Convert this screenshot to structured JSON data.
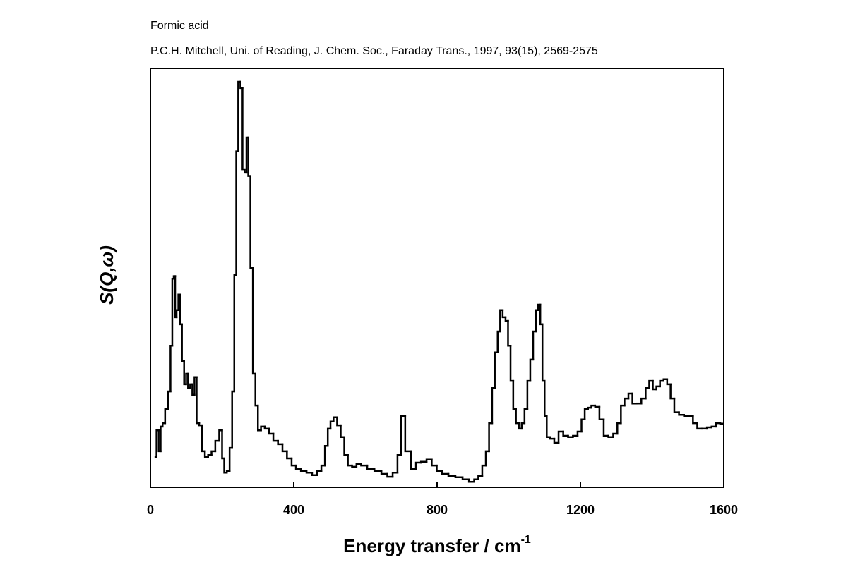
{
  "chart_data": {
    "type": "line",
    "drawstyle": "steps-mid",
    "title": "Formic acid",
    "subtitle": "P.C.H. Mitchell, Uni. of Reading, J. Chem. Soc., Faraday Trans., 1997, 93(15), 2569-2575",
    "x_label": "Energy transfer / cm",
    "x_label_superscript": "-1",
    "y_label": "S(Q,ω)",
    "xlim": [
      0,
      1600
    ],
    "xticks": [
      0,
      400,
      800,
      1200,
      1600
    ],
    "ylim": [
      0,
      100
    ],
    "color": "#000000",
    "x": [
      14,
      20,
      26,
      31,
      37,
      45,
      53,
      59,
      63,
      67,
      71,
      75,
      81,
      85,
      91,
      97,
      102,
      108,
      114,
      120,
      126,
      132,
      140,
      148,
      156,
      166,
      175,
      187,
      197,
      203,
      209,
      217,
      225,
      231,
      237,
      242,
      248,
      254,
      260,
      266,
      270,
      276,
      282,
      290,
      296,
      304,
      313,
      325,
      337,
      349,
      363,
      374,
      388,
      400,
      412,
      428,
      443,
      459,
      471,
      483,
      491,
      499,
      506,
      516,
      526,
      536,
      546,
      556,
      569,
      581,
      595,
      615,
      635,
      654,
      668,
      684,
      695,
      703,
      719,
      735,
      747,
      763,
      778,
      792,
      806,
      822,
      841,
      861,
      881,
      897,
      910,
      920,
      932,
      940,
      950,
      957,
      965,
      973,
      979,
      987,
      995,
      1001,
      1009,
      1016,
      1024,
      1032,
      1040,
      1048,
      1056,
      1064,
      1072,
      1079,
      1085,
      1091,
      1097,
      1103,
      1109,
      1121,
      1133,
      1145,
      1159,
      1172,
      1186,
      1198,
      1208,
      1216,
      1226,
      1235,
      1247,
      1259,
      1271,
      1285,
      1298,
      1308,
      1318,
      1328,
      1340,
      1350,
      1363,
      1377,
      1387,
      1397,
      1407,
      1417,
      1427,
      1437,
      1447,
      1456,
      1468,
      1482,
      1496,
      1508,
      1520,
      1532,
      1546,
      1560,
      1572,
      1584,
      1596
    ],
    "values": [
      7.2,
      13.6,
      8.6,
      14.5,
      15.3,
      18.7,
      22.9,
      33.8,
      49.8,
      50.4,
      40.6,
      42.3,
      46.0,
      38.9,
      30.1,
      24.6,
      27.1,
      23.7,
      24.6,
      22.1,
      26.3,
      15.3,
      14.8,
      8.6,
      7.2,
      7.7,
      8.6,
      11.1,
      13.6,
      6.9,
      3.5,
      3.9,
      9.4,
      22.9,
      50.7,
      80.2,
      96.8,
      95.3,
      75.9,
      75.1,
      83.5,
      74.3,
      52.4,
      27.1,
      19.5,
      13.6,
      14.5,
      14.0,
      12.8,
      11.1,
      10.3,
      8.6,
      6.9,
      5.2,
      4.4,
      3.9,
      3.5,
      2.9,
      3.9,
      5.2,
      9.9,
      14.0,
      15.7,
      16.7,
      14.8,
      12.0,
      7.7,
      5.2,
      4.9,
      5.6,
      5.2,
      4.4,
      3.9,
      3.2,
      2.5,
      3.5,
      7.7,
      17.0,
      8.6,
      4.4,
      5.9,
      6.1,
      6.6,
      5.2,
      3.9,
      3.2,
      2.7,
      2.4,
      1.9,
      1.3,
      1.9,
      2.7,
      5.2,
      8.6,
      15.3,
      23.7,
      32.2,
      37.2,
      42.3,
      40.6,
      39.7,
      33.8,
      25.4,
      18.7,
      15.3,
      14.0,
      15.3,
      18.7,
      25.4,
      30.5,
      37.2,
      42.3,
      43.6,
      38.9,
      25.4,
      17.0,
      12.0,
      11.6,
      10.6,
      13.3,
      12.3,
      12.0,
      12.3,
      13.3,
      16.2,
      18.7,
      19.0,
      19.5,
      19.2,
      16.2,
      12.3,
      12.0,
      12.8,
      15.3,
      19.5,
      21.2,
      22.4,
      20.0,
      20.0,
      21.2,
      23.7,
      25.4,
      23.4,
      24.1,
      25.4,
      25.8,
      24.6,
      21.2,
      17.9,
      17.3,
      17.0,
      17.0,
      15.3,
      14.0,
      14.0,
      14.3,
      14.5,
      15.3,
      15.2
    ]
  }
}
